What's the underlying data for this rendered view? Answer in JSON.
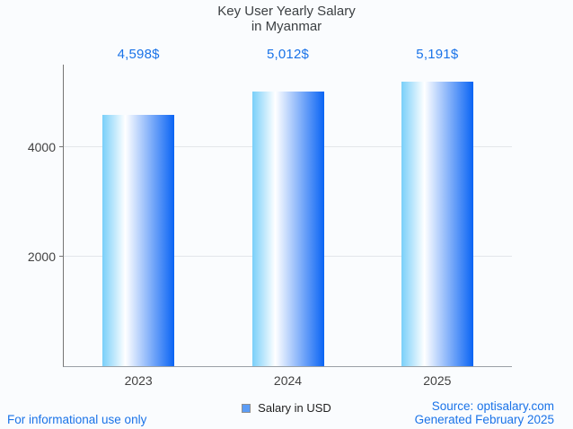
{
  "page": {
    "background": "#fafcfe",
    "accent_blue": "#1a73e8",
    "axis_text_color": "#424242"
  },
  "title": {
    "line1": "Key User Yearly Salary",
    "line2": "in Myanmar"
  },
  "chart_data": {
    "type": "bar",
    "categories": [
      "2023",
      "2024",
      "2025"
    ],
    "values": [
      4598,
      5012,
      5191
    ],
    "value_labels": [
      "4,598$",
      "5,012$",
      "5,191$"
    ],
    "series": [
      {
        "name": "Salary in USD",
        "values": [
          4598,
          5012,
          5191
        ]
      }
    ],
    "title": "Key User Yearly Salary in Myanmar",
    "xlabel": "",
    "ylabel": "",
    "ylim": [
      0,
      5508
    ],
    "yticks": [
      2000,
      4000
    ],
    "grid": "horizontal",
    "legend_position": "bottom",
    "bar_gradient": [
      "#79cff9",
      "#ffffff",
      "#0a64f4"
    ]
  },
  "legend": {
    "label": "Salary in USD",
    "swatch_color": "#5b9cf6",
    "swatch_border": "#8f8f8f"
  },
  "footer": {
    "left": "For informational use only",
    "source": "Source: optisalary.com",
    "generated": "Generated February 2025"
  }
}
